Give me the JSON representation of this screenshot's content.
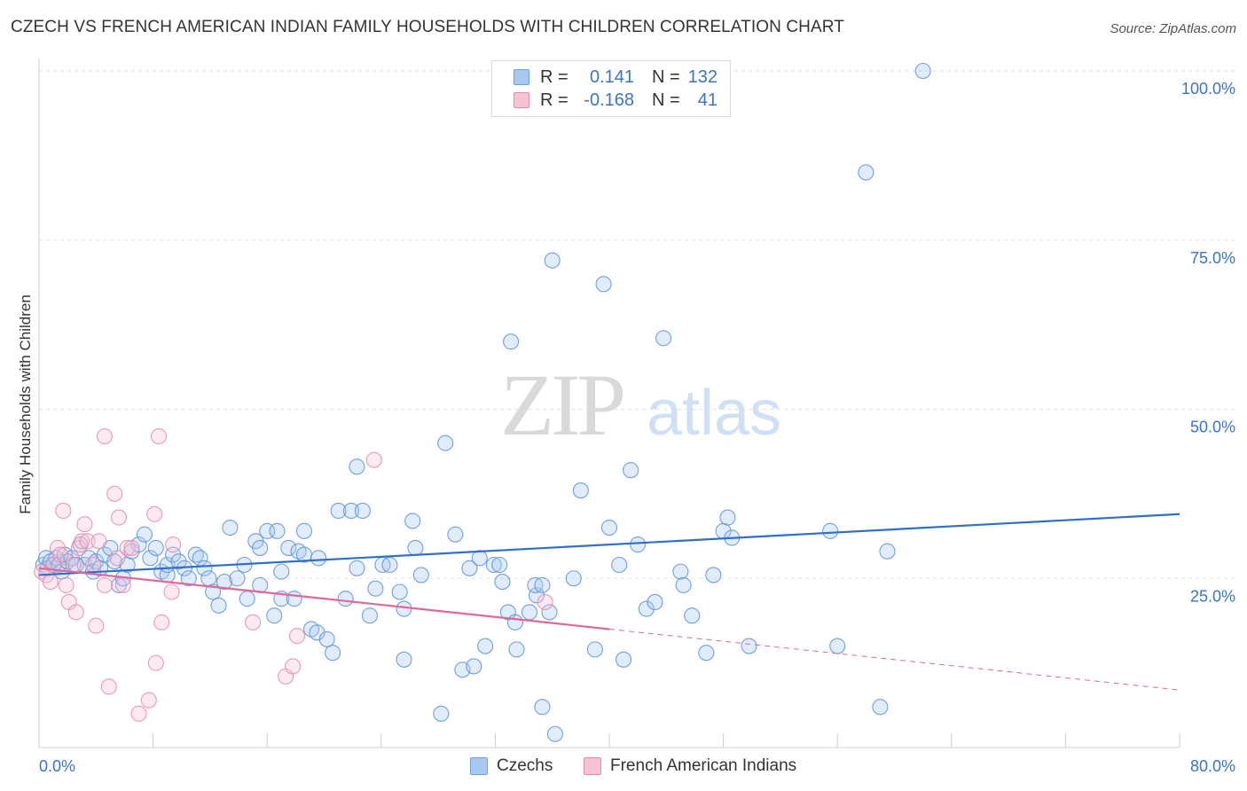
{
  "header": {
    "title": "CZECH VS FRENCH AMERICAN INDIAN FAMILY HOUSEHOLDS WITH CHILDREN CORRELATION CHART",
    "source": "Source: ZipAtlas.com"
  },
  "watermark": {
    "zip": "ZIP",
    "atlas": "atlas"
  },
  "legend": {
    "rows": [
      {
        "r_label": "R =",
        "r_value": "0.141",
        "n_label": "N =",
        "n_value": "132",
        "color": "#a9c8f0",
        "border": "#6c9fe0"
      },
      {
        "r_label": "R =",
        "r_value": "-0.168",
        "n_label": "N =",
        "n_value": "41",
        "color": "#f7c3d3",
        "border": "#e58aab"
      }
    ]
  },
  "bottom_legend": {
    "czechs": "Czechs",
    "french": "French American Indians"
  },
  "chart_data": {
    "type": "scatter",
    "title": "CZECH VS FRENCH AMERICAN INDIAN FAMILY HOUSEHOLDS WITH CHILDREN CORRELATION CHART",
    "xlabel": "",
    "ylabel": "Family Households with Children",
    "xlim": [
      0,
      80
    ],
    "ylim": [
      0,
      102
    ],
    "x_tick_labels": [
      "0.0%",
      "80.0%"
    ],
    "y_ticks": [
      25,
      50,
      75,
      100
    ],
    "y_tick_labels": [
      "25.0%",
      "50.0%",
      "75.0%",
      "100.0%"
    ],
    "grid": true,
    "colors": {
      "czechs": "#4a86d6",
      "french": "#e87aa0",
      "czech_line": "#2f6fcb",
      "french_line": "#e0679a",
      "tick_label": "#3a74c4"
    },
    "series": [
      {
        "name": "Czechs",
        "color": "#4a86d6",
        "points": [
          [
            0.3,
            27
          ],
          [
            0.5,
            28
          ],
          [
            0.6,
            26.5
          ],
          [
            0.8,
            27.5
          ],
          [
            1.0,
            27
          ],
          [
            1.2,
            28
          ],
          [
            1.4,
            27
          ],
          [
            1.6,
            26
          ],
          [
            1.8,
            28.5
          ],
          [
            2.0,
            27.5
          ],
          [
            2.3,
            28
          ],
          [
            2.6,
            27
          ],
          [
            2.9,
            30
          ],
          [
            3.2,
            27
          ],
          [
            3.5,
            28
          ],
          [
            3.8,
            26
          ],
          [
            4.0,
            27.5
          ],
          [
            4.3,
            26.5
          ],
          [
            4.6,
            28.5
          ],
          [
            5.0,
            29.5
          ],
          [
            5.3,
            27.5
          ],
          [
            5.6,
            24
          ],
          [
            5.9,
            25
          ],
          [
            6.2,
            27
          ],
          [
            6.5,
            29
          ],
          [
            7.0,
            30
          ],
          [
            7.4,
            31.5
          ],
          [
            7.8,
            28
          ],
          [
            8.2,
            29.5
          ],
          [
            8.6,
            26
          ],
          [
            9.0,
            25.5
          ],
          [
            9.0,
            27
          ],
          [
            9.4,
            28.5
          ],
          [
            9.8,
            27.5
          ],
          [
            10.2,
            26.5
          ],
          [
            10.5,
            25
          ],
          [
            11.0,
            28.5
          ],
          [
            11.3,
            28
          ],
          [
            11.6,
            26.5
          ],
          [
            11.9,
            25
          ],
          [
            12.2,
            23
          ],
          [
            12.6,
            21
          ],
          [
            13.0,
            24.5
          ],
          [
            13.4,
            32.5
          ],
          [
            13.9,
            25
          ],
          [
            14.4,
            27
          ],
          [
            14.6,
            22
          ],
          [
            15.2,
            30.5
          ],
          [
            15.5,
            29.5
          ],
          [
            16.0,
            32
          ],
          [
            15.5,
            24
          ],
          [
            16.5,
            19.5
          ],
          [
            17.0,
            22
          ],
          [
            16.7,
            32
          ],
          [
            17.0,
            26
          ],
          [
            17.5,
            29.5
          ],
          [
            17.9,
            22
          ],
          [
            18.2,
            29
          ],
          [
            18.6,
            32
          ],
          [
            18.6,
            28.5
          ],
          [
            19.1,
            17.5
          ],
          [
            19.5,
            17
          ],
          [
            19.6,
            28
          ],
          [
            20.2,
            16
          ],
          [
            20.6,
            14
          ],
          [
            21.0,
            35
          ],
          [
            21.5,
            22
          ],
          [
            21.9,
            35
          ],
          [
            22.3,
            41.5
          ],
          [
            22.7,
            35
          ],
          [
            22.3,
            26.5
          ],
          [
            23.2,
            19.5
          ],
          [
            23.6,
            23.5
          ],
          [
            24.1,
            27
          ],
          [
            24.6,
            27
          ],
          [
            25.3,
            23
          ],
          [
            25.6,
            20.5
          ],
          [
            25.6,
            13
          ],
          [
            26.2,
            33.5
          ],
          [
            26.4,
            29.5
          ],
          [
            26.8,
            25.5
          ],
          [
            28.2,
            5
          ],
          [
            28.5,
            45
          ],
          [
            29.2,
            31.5
          ],
          [
            29.7,
            11.5
          ],
          [
            30.2,
            26.5
          ],
          [
            30.5,
            12
          ],
          [
            30.9,
            28
          ],
          [
            31.3,
            15
          ],
          [
            31.9,
            27
          ],
          [
            32.3,
            27
          ],
          [
            32.5,
            24.5
          ],
          [
            32.9,
            20
          ],
          [
            33.4,
            18.5
          ],
          [
            33.5,
            14.5
          ],
          [
            33.1,
            60
          ],
          [
            34.4,
            20
          ],
          [
            34.9,
            22.5
          ],
          [
            34.8,
            24
          ],
          [
            35.3,
            24
          ],
          [
            35.8,
            20
          ],
          [
            35.3,
            6
          ],
          [
            36.0,
            72
          ],
          [
            36.2,
            2
          ],
          [
            37.5,
            25
          ],
          [
            38.0,
            38
          ],
          [
            39.0,
            14.5
          ],
          [
            40.0,
            32.5
          ],
          [
            39.6,
            68.5
          ],
          [
            40.7,
            27
          ],
          [
            41.0,
            13
          ],
          [
            41.5,
            41
          ],
          [
            42.0,
            30
          ],
          [
            42.6,
            20.5
          ],
          [
            43.2,
            21.5
          ],
          [
            43.8,
            60.5
          ],
          [
            45.0,
            26
          ],
          [
            45.2,
            24
          ],
          [
            45.8,
            19.5
          ],
          [
            46.8,
            14
          ],
          [
            47.3,
            25.5
          ],
          [
            48.0,
            32
          ],
          [
            48.3,
            34
          ],
          [
            48.6,
            31
          ],
          [
            49.8,
            15
          ],
          [
            55.5,
            32
          ],
          [
            56.0,
            15
          ],
          [
            59.0,
            6
          ],
          [
            59.5,
            29
          ],
          [
            58.0,
            85
          ],
          [
            62.0,
            100
          ]
        ]
      },
      {
        "name": "French American Indians",
        "color": "#e87aa0",
        "points": [
          [
            0.2,
            26
          ],
          [
            0.5,
            25.5
          ],
          [
            0.8,
            24.5
          ],
          [
            1.0,
            27
          ],
          [
            1.3,
            29.5
          ],
          [
            1.5,
            28.5
          ],
          [
            1.7,
            35
          ],
          [
            1.9,
            24
          ],
          [
            2.1,
            21.5
          ],
          [
            2.4,
            27
          ],
          [
            2.6,
            20
          ],
          [
            2.8,
            29.5
          ],
          [
            3.0,
            30.5
          ],
          [
            3.2,
            33
          ],
          [
            3.4,
            30.5
          ],
          [
            3.8,
            27
          ],
          [
            4.0,
            18
          ],
          [
            4.2,
            30.5
          ],
          [
            4.6,
            24
          ],
          [
            4.6,
            46
          ],
          [
            4.9,
            9
          ],
          [
            5.3,
            37.5
          ],
          [
            5.5,
            28
          ],
          [
            5.6,
            34
          ],
          [
            5.9,
            24
          ],
          [
            6.2,
            29.5
          ],
          [
            6.5,
            29.5
          ],
          [
            7.0,
            5
          ],
          [
            7.7,
            7
          ],
          [
            8.1,
            34.5
          ],
          [
            8.2,
            12.5
          ],
          [
            8.4,
            46
          ],
          [
            8.6,
            18.5
          ],
          [
            9.3,
            23
          ],
          [
            9.4,
            30
          ],
          [
            15.0,
            18.5
          ],
          [
            17.3,
            10.5
          ],
          [
            17.8,
            12
          ],
          [
            18.1,
            16.5
          ],
          [
            23.5,
            42.5
          ],
          [
            35.5,
            21.5
          ]
        ]
      }
    ],
    "trend_lines": [
      {
        "name": "Czechs",
        "from": [
          0,
          25.5
        ],
        "to": [
          80,
          34.5
        ],
        "style": "solid"
      },
      {
        "name": "French American Indians",
        "from": [
          0,
          26.5
        ],
        "to": [
          40,
          17.5
        ],
        "style": "solid"
      },
      {
        "name": "French American Indians",
        "from": [
          40,
          17.5
        ],
        "to": [
          80,
          8.5
        ],
        "style": "dashed"
      }
    ]
  }
}
